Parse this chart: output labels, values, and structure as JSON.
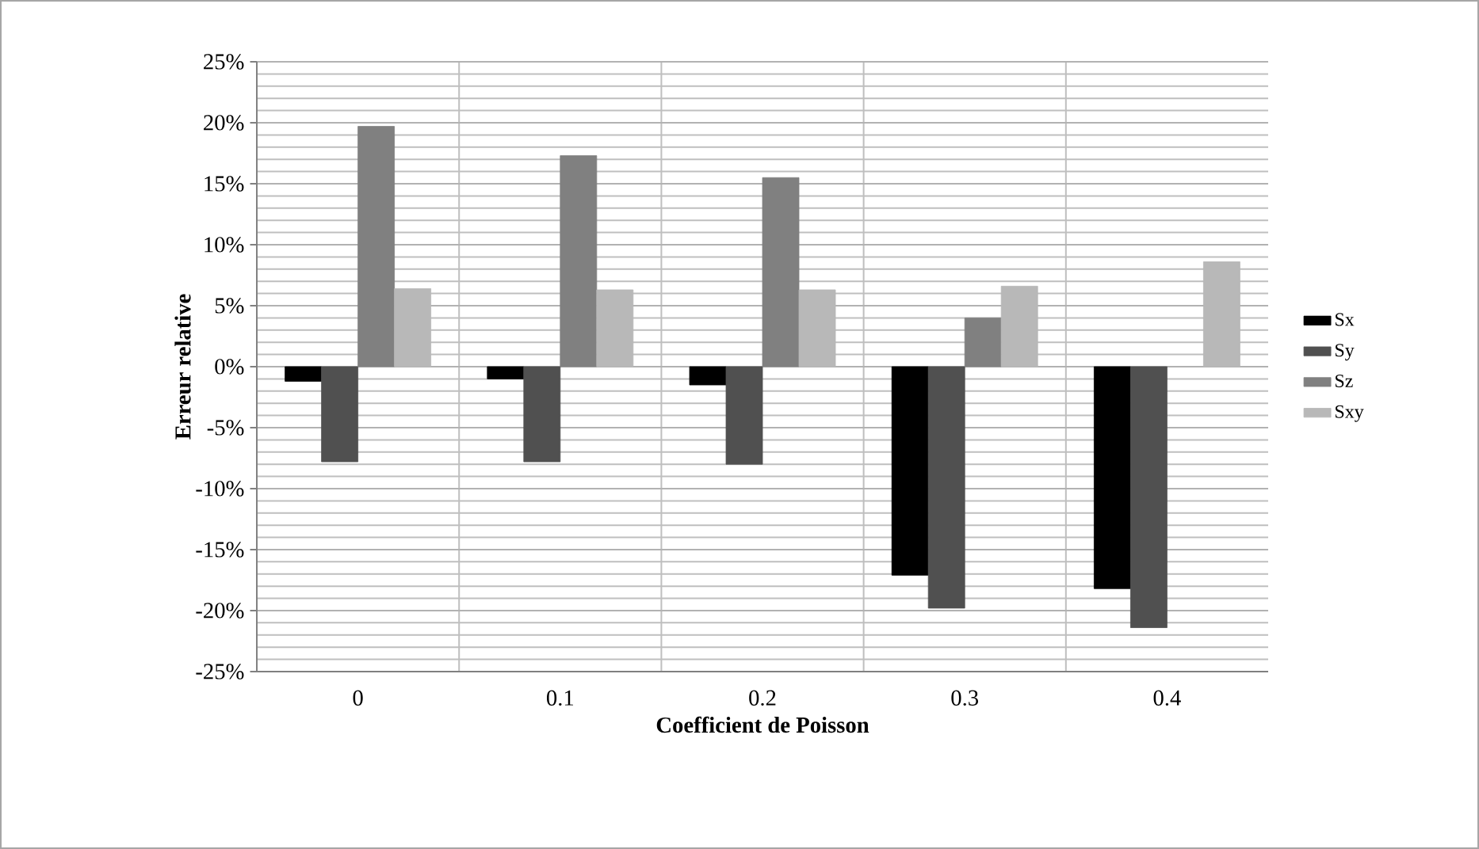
{
  "chart_data": {
    "type": "bar",
    "xlabel": "Coefficient de Poisson",
    "ylabel": "Erreur  relative",
    "categories": [
      "0",
      "0.1",
      "0.2",
      "0.3",
      "0.4"
    ],
    "series": [
      {
        "name": "Sx",
        "color": "#000000",
        "values": [
          -1.2,
          -1.0,
          -1.5,
          -17.1,
          -18.2
        ]
      },
      {
        "name": "Sy",
        "color": "#505050",
        "values": [
          -7.8,
          -7.8,
          -8.0,
          -19.8,
          -21.4
        ]
      },
      {
        "name": "Sz",
        "color": "#808080",
        "values": [
          19.7,
          17.3,
          15.5,
          4.0,
          null
        ]
      },
      {
        "name": "Sxy",
        "color": "#b8b8b8",
        "values": [
          6.4,
          6.3,
          6.3,
          6.6,
          8.6
        ]
      }
    ],
    "ylim": [
      -25,
      25
    ],
    "yticks": [
      {
        "value": -25,
        "label": "-25%"
      },
      {
        "value": -20,
        "label": "-20%"
      },
      {
        "value": -15,
        "label": "-15%"
      },
      {
        "value": -10,
        "label": "-10%"
      },
      {
        "value": -5,
        "label": "-5%"
      },
      {
        "value": 0,
        "label": "0%"
      },
      {
        "value": 5,
        "label": "5%"
      },
      {
        "value": 10,
        "label": "10%"
      },
      {
        "value": 15,
        "label": "15%"
      },
      {
        "value": 20,
        "label": "20%"
      },
      {
        "value": 25,
        "label": "25%"
      }
    ],
    "grid": true,
    "legend": "right"
  }
}
